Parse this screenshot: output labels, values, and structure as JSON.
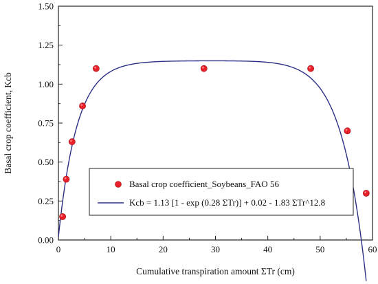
{
  "chart_data": {
    "type": "scatter",
    "xlabel": "Cumulative transpiration amount ΣTr (cm)",
    "ylabel": "Basal crop coefficient, Kcb",
    "xlim": [
      0,
      60
    ],
    "ylim": [
      0,
      1.5
    ],
    "x_ticks": [
      0,
      10,
      20,
      30,
      40,
      50,
      60
    ],
    "y_ticks": [
      0.0,
      0.25,
      0.5,
      0.75,
      1.0,
      1.25,
      1.5
    ],
    "x_tick_labels": [
      "0",
      "10",
      "20",
      "30",
      "40",
      "50",
      "60"
    ],
    "y_tick_labels": [
      "0.00",
      "0.25",
      "0.50",
      "0.75",
      "1.00",
      "1.25",
      "1.50"
    ],
    "grid": false,
    "legend_position": "bottom-center",
    "series": [
      {
        "name": "Basal crop coefficient_Soybeans_FAO 56",
        "kind": "scatter",
        "color": "#e8202a",
        "x": [
          0.8,
          1.5,
          2.6,
          4.6,
          7.2,
          27.8,
          48.2,
          55.2,
          58.8
        ],
        "y": [
          0.15,
          0.39,
          0.63,
          0.86,
          1.1,
          1.1,
          1.1,
          0.7,
          0.3
        ]
      },
      {
        "name": "Kcb = 1.13 [1 - exp (0.28 ΣTr)] + 0.02 - 1.83 ΣTr^12.8",
        "kind": "line",
        "color": "#2a2f86",
        "a": 1.13,
        "k": 0.28,
        "c": 0.02,
        "b": 1.83,
        "p": 12.8,
        "x_scale": 60
      }
    ]
  }
}
